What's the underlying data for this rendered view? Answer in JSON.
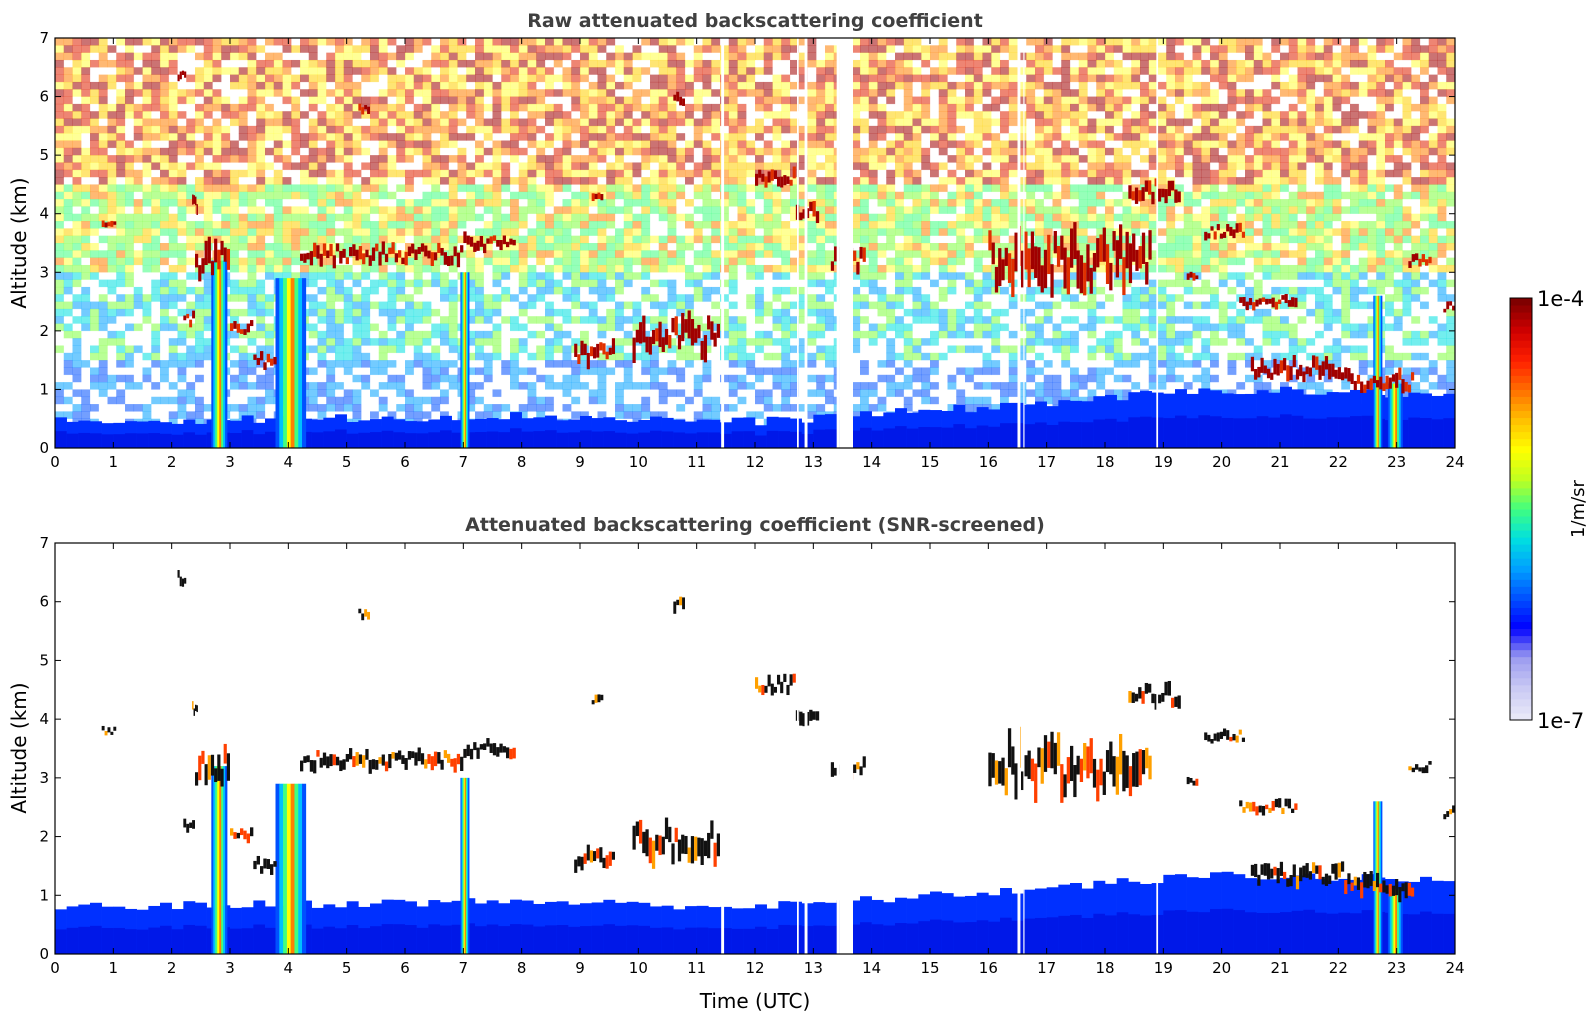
{
  "chart_data": [
    {
      "type": "heatmap",
      "title": "Raw attenuated backscattering coefficient",
      "xlabel": "",
      "ylabel": "Altitude (km)",
      "xlim": [
        0,
        24
      ],
      "ylim": [
        0,
        7
      ],
      "xticks": [
        "0",
        "1",
        "2",
        "3",
        "4",
        "5",
        "6",
        "7",
        "8",
        "9",
        "10",
        "11",
        "12",
        "13",
        "14",
        "15",
        "16",
        "17",
        "18",
        "19",
        "20",
        "21",
        "22",
        "23",
        "24"
      ],
      "yticks": [
        "0",
        "1",
        "2",
        "3",
        "4",
        "5",
        "6",
        "7"
      ],
      "screened": false,
      "boundary_layer_top_km": [
        [
          0,
          0.45
        ],
        [
          4,
          0.5
        ],
        [
          8,
          0.55
        ],
        [
          12,
          0.45
        ],
        [
          16,
          0.7
        ],
        [
          20,
          1.0
        ],
        [
          24,
          0.9
        ]
      ],
      "data_gaps_utc": [
        [
          11.42,
          11.47
        ],
        [
          12.72,
          12.75
        ],
        [
          12.85,
          12.9
        ],
        [
          13.4,
          13.45
        ],
        [
          13.45,
          13.68
        ],
        [
          16.5,
          16.55
        ],
        [
          16.6,
          16.62
        ],
        [
          18.88,
          18.91
        ]
      ],
      "rain_shafts": [
        {
          "start": 2.68,
          "end": 2.95,
          "top_km": 3.2
        },
        {
          "start": 3.78,
          "end": 4.3,
          "top_km": 2.9
        },
        {
          "start": 6.95,
          "end": 7.1,
          "top_km": 3.0
        },
        {
          "start": 22.6,
          "end": 22.75,
          "top_km": 2.6
        },
        {
          "start": 22.85,
          "end": 23.1,
          "top_km": 1.1
        }
      ],
      "cloud_layers": [
        {
          "x0": 0.8,
          "x1": 1.05,
          "alt": 3.8,
          "thick": 0.08
        },
        {
          "x0": 2.1,
          "x1": 2.25,
          "alt": 6.4,
          "thick": 0.12
        },
        {
          "x0": 2.35,
          "x1": 2.45,
          "alt": 4.15,
          "thick": 0.15
        },
        {
          "x0": 2.2,
          "x1": 2.4,
          "alt": 2.2,
          "thick": 0.12
        },
        {
          "x0": 2.4,
          "x1": 3.0,
          "alt": 3.2,
          "thick": 0.35
        },
        {
          "x0": 3.0,
          "x1": 3.4,
          "alt": 2.05,
          "thick": 0.12
        },
        {
          "x0": 3.4,
          "x1": 3.8,
          "alt": 1.5,
          "thick": 0.15
        },
        {
          "x0": 4.2,
          "x1": 7.0,
          "alt": 3.3,
          "thick": 0.18
        },
        {
          "x0": 5.2,
          "x1": 5.4,
          "alt": 5.8,
          "thick": 0.1
        },
        {
          "x0": 7.0,
          "x1": 7.9,
          "alt": 3.5,
          "thick": 0.15
        },
        {
          "x0": 8.9,
          "x1": 9.6,
          "alt": 1.6,
          "thick": 0.2
        },
        {
          "x0": 9.2,
          "x1": 9.4,
          "alt": 4.35,
          "thick": 0.1
        },
        {
          "x0": 9.9,
          "x1": 11.4,
          "alt": 1.9,
          "thick": 0.35
        },
        {
          "x0": 10.6,
          "x1": 10.8,
          "alt": 5.95,
          "thick": 0.15
        },
        {
          "x0": 12.0,
          "x1": 12.7,
          "alt": 4.6,
          "thick": 0.15
        },
        {
          "x0": 12.7,
          "x1": 13.1,
          "alt": 4.0,
          "thick": 0.2
        },
        {
          "x0": 13.3,
          "x1": 13.9,
          "alt": 3.2,
          "thick": 0.2
        },
        {
          "x0": 16.0,
          "x1": 18.8,
          "alt": 3.2,
          "thick": 0.5
        },
        {
          "x0": 18.4,
          "x1": 19.3,
          "alt": 4.4,
          "thick": 0.2
        },
        {
          "x0": 19.4,
          "x1": 19.6,
          "alt": 2.95,
          "thick": 0.1
        },
        {
          "x0": 19.7,
          "x1": 20.4,
          "alt": 3.7,
          "thick": 0.12
        },
        {
          "x0": 20.3,
          "x1": 21.3,
          "alt": 2.5,
          "thick": 0.12
        },
        {
          "x0": 20.5,
          "x1": 22.1,
          "alt": 1.35,
          "thick": 0.2
        },
        {
          "x0": 22.1,
          "x1": 23.3,
          "alt": 1.15,
          "thick": 0.2
        },
        {
          "x0": 23.2,
          "x1": 23.6,
          "alt": 3.2,
          "thick": 0.1
        },
        {
          "x0": 23.8,
          "x1": 24.0,
          "alt": 2.4,
          "thick": 0.1
        }
      ]
    },
    {
      "type": "heatmap",
      "title": "Attenuated backscattering coefficient (SNR-screened)",
      "xlabel": "Time (UTC)",
      "ylabel": "Altitude (km)",
      "xlim": [
        0,
        24
      ],
      "ylim": [
        0,
        7
      ],
      "xticks": [
        "0",
        "1",
        "2",
        "3",
        "4",
        "5",
        "6",
        "7",
        "8",
        "9",
        "10",
        "11",
        "12",
        "13",
        "14",
        "15",
        "16",
        "17",
        "18",
        "19",
        "20",
        "21",
        "22",
        "23",
        "24"
      ],
      "yticks": [
        "0",
        "1",
        "2",
        "3",
        "4",
        "5",
        "6",
        "7"
      ],
      "screened": true
    }
  ],
  "colorbar": {
    "label": "1/m/sr",
    "max_label": "1e-4",
    "min_label": "1e-7",
    "scale": "log",
    "range": [
      1e-07,
      0.0001
    ],
    "colors": [
      "#e8e8f8",
      "#c8c8f4",
      "#9a9af0",
      "#0000ff",
      "#0050ff",
      "#00a0ff",
      "#00e0e0",
      "#40ff80",
      "#c0ff20",
      "#ffff00",
      "#ffc000",
      "#ff7000",
      "#ff2000",
      "#d00000",
      "#800000"
    ]
  }
}
